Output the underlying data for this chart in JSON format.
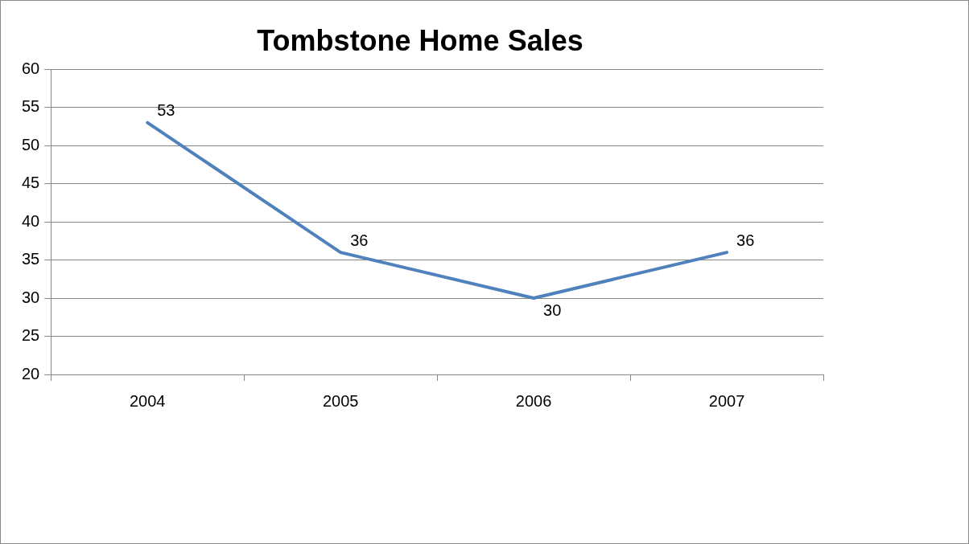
{
  "chart_data": {
    "type": "line",
    "title": "Tombstone Home Sales",
    "categories": [
      "2004",
      "2005",
      "2006",
      "2007"
    ],
    "series": [
      {
        "color": "#4f81bd",
        "values": [
          53,
          36,
          30,
          36
        ]
      }
    ],
    "ylim": [
      20,
      60
    ],
    "yticks": [
      20,
      25,
      30,
      35,
      40,
      45,
      50,
      55,
      60
    ],
    "grid": "y",
    "legend": false,
    "marker": "none",
    "line_style": "solid",
    "data_labels": true
  }
}
